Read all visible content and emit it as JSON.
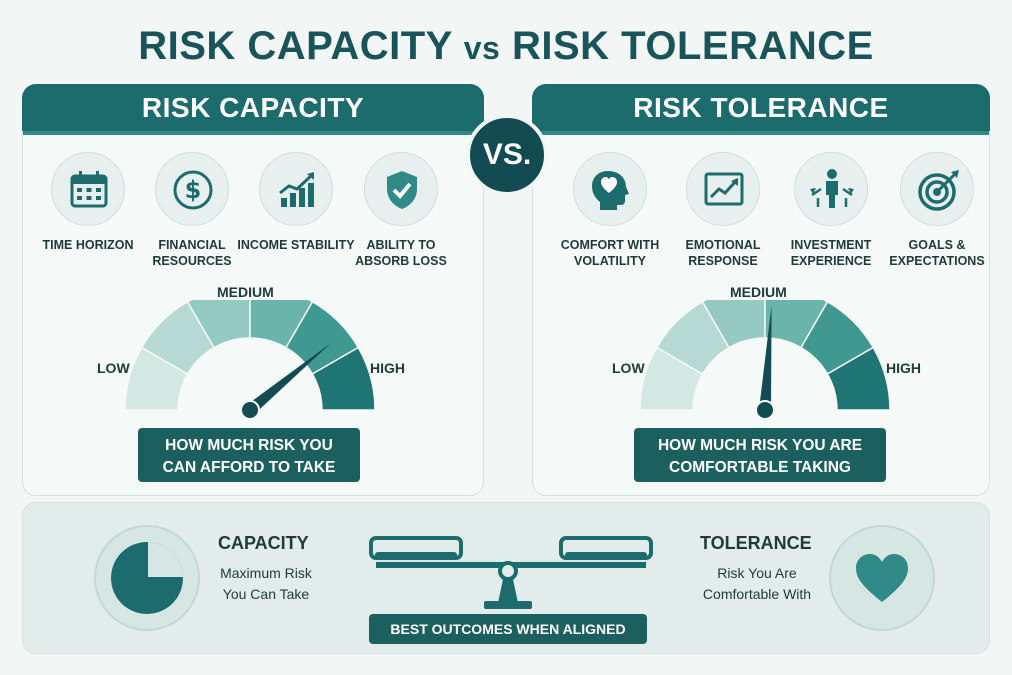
{
  "title": {
    "part1": "RISK CAPACITY ",
    "vs": "vs",
    "part2": " RISK TOLERANCE"
  },
  "vs_badge": "VS.",
  "capacity_panel": {
    "header": "RISK CAPACITY",
    "items": [
      {
        "icon": "calendar-icon",
        "label": "TIME HORIZON"
      },
      {
        "icon": "dollar-icon",
        "label": "FINANCIAL RESOURCES"
      },
      {
        "icon": "growth-chart-icon",
        "label": "INCOME STABILITY"
      },
      {
        "icon": "shield-check-icon",
        "label": "ABILITY TO ABSORB LOSS"
      }
    ],
    "gauge": {
      "low": "LOW",
      "medium": "MEDIUM",
      "high": "HIGH",
      "level": 0.78
    },
    "caption": [
      "HOW MUCH RISK YOU",
      "CAN AFFORD TO TAKE"
    ]
  },
  "tolerance_panel": {
    "header": "RISK TOLERANCE",
    "items": [
      {
        "icon": "head-heart-icon",
        "label": "COMFORT WITH VOLATILITY"
      },
      {
        "icon": "trend-line-icon",
        "label": "EMOTIONAL RESPONSE"
      },
      {
        "icon": "person-arrows-icon",
        "label": "INVESTMENT EXPERIENCE"
      },
      {
        "icon": "target-icon",
        "label": "GOALS & EXPECTATIONS"
      }
    ],
    "gauge": {
      "low": "LOW",
      "medium": "MEDIUM",
      "high": "HIGH",
      "level": 0.52
    },
    "caption": [
      "HOW MUCH RISK YOU ARE",
      "COMFORTABLE TAKING"
    ]
  },
  "summary": {
    "capacity_title": "CAPACITY",
    "capacity_text": [
      "Maximum Risk",
      "You Can Take"
    ],
    "tolerance_title": "TOLERANCE",
    "tolerance_text": [
      "Risk You Are",
      "Comfortable With"
    ],
    "aligned_label": "BEST OUTCOMES WHEN ALIGNED"
  },
  "colors": {
    "dark_teal": "#124c52",
    "teal": "#1c6c6d",
    "mid_teal": "#2f8a88",
    "light_teal": "#cfe4e0",
    "background": "#f2f6f5"
  }
}
